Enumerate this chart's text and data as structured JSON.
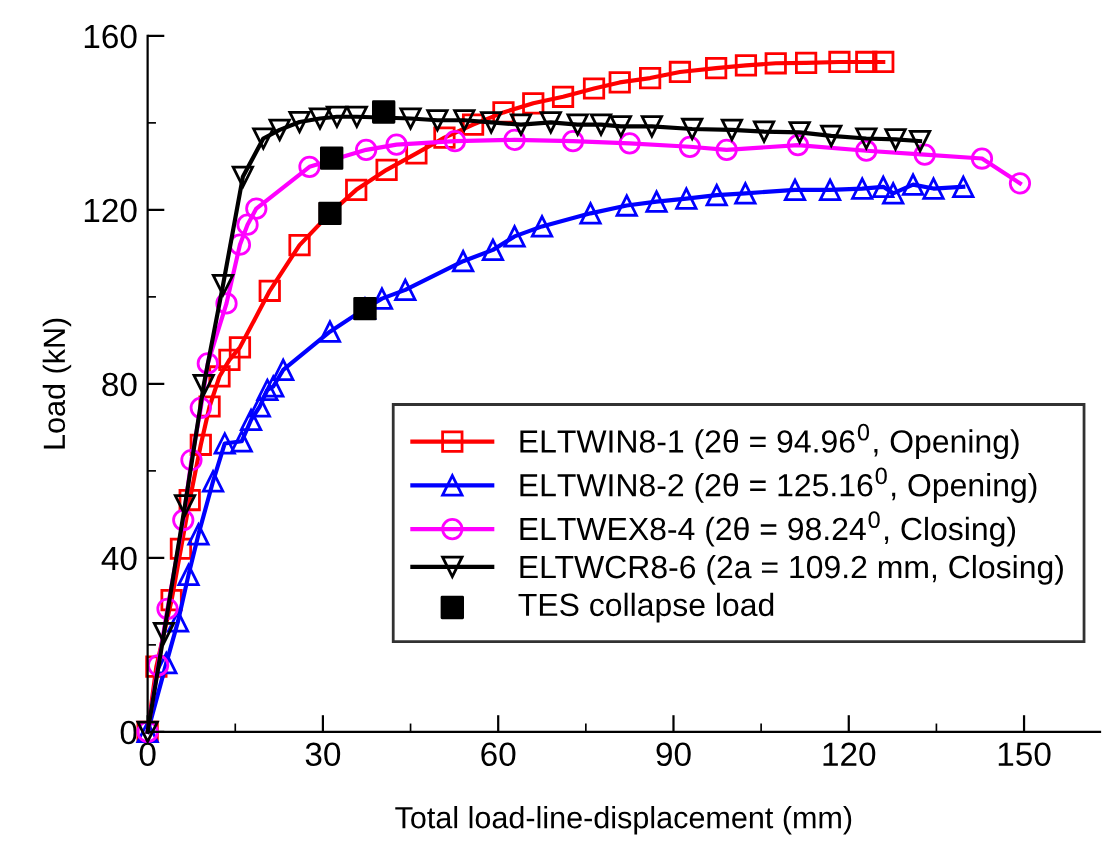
{
  "chart_data": {
    "type": "line",
    "xlabel": "Total load-line-displacement (mm)",
    "ylabel": "Load (kN)",
    "xlim": [
      0,
      163
    ],
    "xticks": [
      0,
      30,
      60,
      90,
      120,
      150
    ],
    "ylim": [
      0,
      160
    ],
    "yticks": [
      0,
      40,
      80,
      120,
      160
    ],
    "grid": false,
    "legend": "right",
    "line_style": "solid",
    "series": [
      {
        "name": "ELTWIN8-1 (2θ = 94.96$^{0}$, Opening)",
        "color": "#ff0000",
        "marker": "square",
        "x": [
          0,
          1.5,
          4.1,
          5.7,
          7.2,
          9.1,
          10.6,
          12.3,
          14,
          15.8,
          20.9,
          26,
          31.2,
          35.7,
          40.9,
          46,
          50.8,
          55.7,
          60.9,
          66,
          71.1,
          76.4,
          80.8,
          86,
          91.1,
          97.3,
          102.4,
          107.5,
          112.7,
          118.4,
          123,
          125.9
        ],
        "values": [
          0,
          15,
          30.3,
          42.1,
          53.3,
          66,
          74.8,
          81.7,
          85.5,
          88.4,
          101.4,
          111.9,
          119.2,
          124.6,
          129.2,
          133,
          136.6,
          139.6,
          142.4,
          144.5,
          146,
          147.9,
          149.3,
          150.3,
          151.7,
          152.6,
          153.2,
          153.7,
          153.8,
          154,
          154,
          154
        ]
      },
      {
        "name": "ELTWIN8-2 (2θ = 125.16$^{0}$, Opening)",
        "color": "#0000ff",
        "marker": "triangle",
        "x": [
          0,
          3.2,
          5.2,
          7,
          8.7,
          11.2,
          13.2,
          16.1,
          17.7,
          19.2,
          20.5,
          21.5,
          23.2,
          31.2,
          37.2,
          40.1,
          44.1,
          54,
          59.1,
          62.8,
          67.5,
          75.8,
          82,
          87.1,
          92.2,
          97.4,
          102.3,
          110.8,
          116.8,
          122.3,
          125.9,
          127.6,
          131,
          134.5,
          139.6
        ],
        "values": [
          0,
          15.8,
          25.4,
          36.1,
          45.4,
          57.6,
          66.3,
          66.8,
          71.7,
          74.8,
          78.6,
          79.4,
          83.2,
          92,
          97.3,
          99.6,
          101.6,
          108.2,
          110.8,
          113.9,
          116.2,
          119.2,
          121,
          121.9,
          122.6,
          123.4,
          123.8,
          124.6,
          124.6,
          124.9,
          125.3,
          123.8,
          125.8,
          124.9,
          125.3
        ]
      },
      {
        "name": "ELTWEX8-4 (2θ = 98.24$^{0}$, Closing)",
        "color": "#ff00ff",
        "marker": "circle",
        "x": [
          0,
          1.8,
          3.4,
          6.1,
          7.5,
          9.1,
          10.3,
          13.5,
          15.8,
          17.1,
          18.6,
          27.7,
          37.4,
          42.6,
          52.6,
          62.8,
          72.8,
          82.5,
          92.8,
          99.1,
          111.3,
          123,
          133,
          142.8,
          149.3
        ],
        "values": [
          0,
          15.3,
          28.3,
          48.7,
          62.5,
          74.5,
          84.7,
          98.5,
          112,
          116.6,
          120.3,
          129.9,
          133.8,
          135,
          135.8,
          136.1,
          135.8,
          135.3,
          134.5,
          133.8,
          134.9,
          133.6,
          132.7,
          131.8,
          126.1
        ]
      },
      {
        "name": "ELTWCR8-6 (2a = 109.2 mm, Closing)",
        "color": "#000000",
        "marker": "triangle_down",
        "x": [
          0,
          2.8,
          6.4,
          9.6,
          12.9,
          16.3,
          19.8,
          22.6,
          26,
          29.5,
          32.4,
          35.8,
          45,
          49.6,
          54.2,
          58.8,
          63.9,
          69,
          73.6,
          77.6,
          81,
          86.3,
          93.2,
          100,
          105.5,
          111.6,
          117,
          123,
          128,
          132.2
        ],
        "values": [
          0,
          22.7,
          52.1,
          79.7,
          102.7,
          127.6,
          136.4,
          138.4,
          140.2,
          141,
          141.4,
          141.4,
          141,
          140.6,
          140.6,
          140.1,
          139.6,
          140.1,
          139.6,
          139.6,
          139.2,
          139.2,
          138.6,
          138.4,
          138,
          137.8,
          137,
          136.4,
          136.2,
          135.8
        ]
      },
      {
        "name": "TES collapse load",
        "type": "scatter",
        "color": "#000000",
        "marker": "square",
        "x": [
          31.2,
          31.5,
          37.2,
          40.4
        ],
        "values": [
          119.2,
          131.9,
          97.3,
          142.5
        ]
      }
    ]
  }
}
